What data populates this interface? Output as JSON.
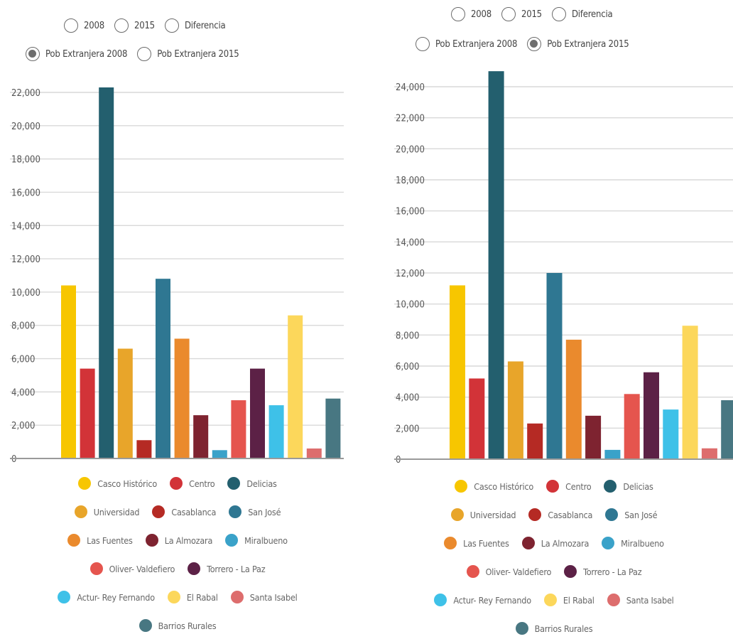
{
  "controls": {
    "left": {
      "row1": [
        {
          "label": "2008",
          "checked": false
        },
        {
          "label": "2015",
          "checked": false
        },
        {
          "label": "Diferencia",
          "checked": false
        }
      ],
      "row2": [
        {
          "label": "Pob Extranjera 2008",
          "checked": true
        },
        {
          "label": "Pob Extranjera 2015",
          "checked": false
        }
      ]
    },
    "right": {
      "row1": [
        {
          "label": "2008",
          "checked": false
        },
        {
          "label": "2015",
          "checked": false
        },
        {
          "label": "Diferencia",
          "checked": false
        }
      ],
      "row2": [
        {
          "label": "Pob Extranjera 2008",
          "checked": false
        },
        {
          "label": "Pob Extranjera 2015",
          "checked": true
        }
      ]
    }
  },
  "colors": {
    "Casco Histórico": "#f7c600",
    "Centro": "#d23338",
    "Delicias": "#235f6e",
    "Universidad": "#e8a52a",
    "Casablanca": "#b52a24",
    "San José": "#2f7792",
    "Las Fuentes": "#ea8a2d",
    "La Almozara": "#7e2330",
    "Miralbueno": "#3aa2c9",
    "Oliver- Valdefiero": "#e5554e",
    "Torrero - La Paz": "#5c2146",
    "Actur- Rey Fernando": "#3ec1e8",
    "El Rabal": "#fcd75b",
    "Santa Isabel": "#dd6d6d",
    "Barrios Rurales": "#487782",
    "grid": "#d9d9d9",
    "axis": "#9a9a9a"
  },
  "legend": [
    [
      "Casco Histórico",
      "Centro",
      "Delicias"
    ],
    [
      "Universidad",
      "Casablanca",
      "San José"
    ],
    [
      "Las Fuentes",
      "La Almozara",
      "Miralbueno"
    ],
    [
      "Oliver- Valdefiero",
      "Torrero - La Paz"
    ],
    [
      "Actur- Rey Fernando",
      "El Rabal",
      "Santa Isabel"
    ],
    [
      "Barrios Rurales"
    ]
  ],
  "chart_data": [
    {
      "type": "bar",
      "categories": [
        "Casco Histórico",
        "Centro",
        "Delicias",
        "Universidad",
        "Casablanca",
        "San José",
        "Las Fuentes",
        "La Almozara",
        "Miralbueno",
        "Oliver- Valdefiero",
        "Torrero - La Paz",
        "Actur- Rey Fernando",
        "El Rabal",
        "Santa Isabel",
        "Barrios Rurales"
      ],
      "values": [
        10400,
        5400,
        22300,
        6600,
        1100,
        10800,
        7200,
        2600,
        500,
        3500,
        5400,
        3200,
        8600,
        600,
        3600
      ],
      "yticks": [
        "0",
        "2,000",
        "4,000",
        "6,000",
        "8,000",
        "10,000",
        "12,000",
        "14,000",
        "16,000",
        "18,000",
        "20,000",
        "22,000"
      ],
      "ylim": [
        0,
        22000
      ],
      "grid": true
    },
    {
      "type": "bar",
      "categories": [
        "Casco Histórico",
        "Centro",
        "Delicias",
        "Universidad",
        "Casablanca",
        "San José",
        "Las Fuentes",
        "La Almozara",
        "Miralbueno",
        "Oliver- Valdefiero",
        "Torrero - La Paz",
        "Actur- Rey Fernando",
        "El Rabal",
        "Santa Isabel",
        "Barrios Rurales"
      ],
      "values": [
        11200,
        5200,
        25000,
        6300,
        2300,
        12000,
        7700,
        2800,
        600,
        4200,
        5600,
        3200,
        8600,
        700,
        3800
      ],
      "yticks": [
        "0",
        "2,000",
        "4,000",
        "6,000",
        "8,000",
        "10,000",
        "12,000",
        "14,000",
        "16,000",
        "18,000",
        "20,000",
        "22,000",
        "24,000"
      ],
      "ylim": [
        0,
        24000
      ],
      "grid": true
    }
  ]
}
